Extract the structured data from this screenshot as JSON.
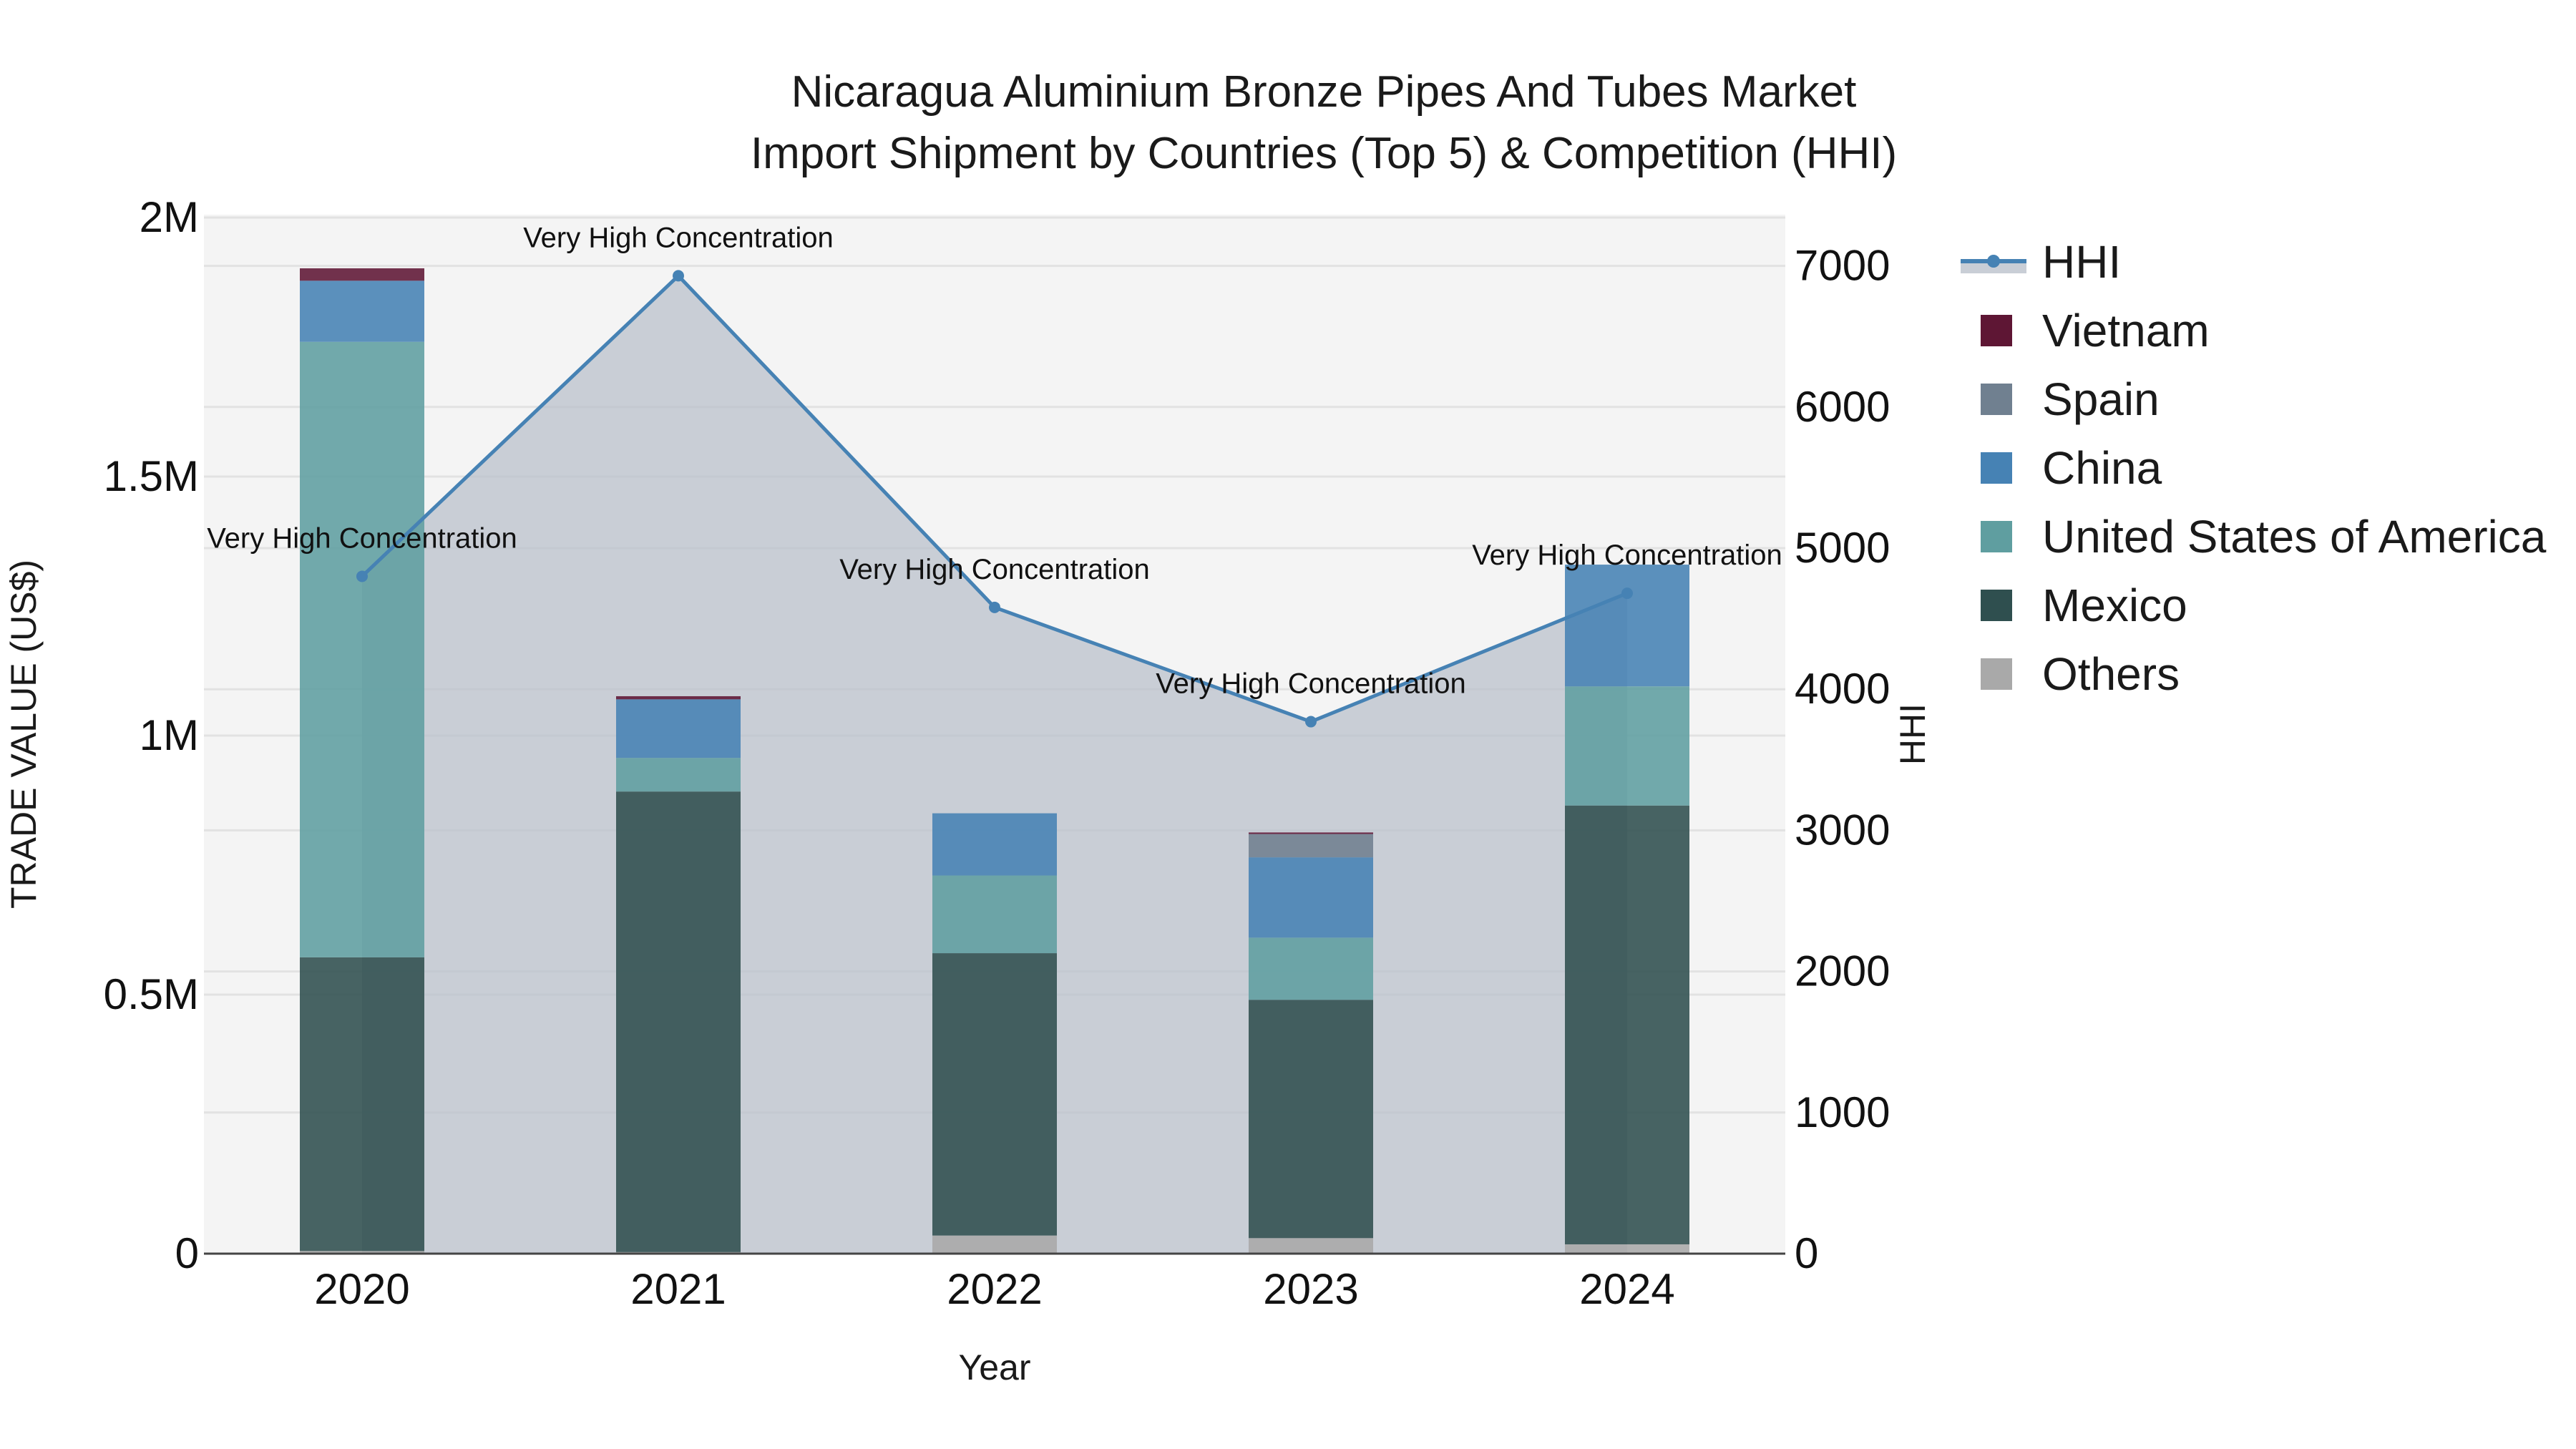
{
  "title": {
    "line1": "Nicaragua Aluminium Bronze Pipes And Tubes Market",
    "line2": "Import Shipment by Countries (Top 5) & Competition (HHI)"
  },
  "axes": {
    "x_title": "Year",
    "y_left_title": "TRADE VALUE (US$)",
    "y_right_title": "HHI",
    "y_left_ticks": [
      "0",
      "0.5M",
      "1M",
      "1.5M",
      "2M"
    ],
    "y_right_ticks": [
      "0",
      "1000",
      "2000",
      "3000",
      "4000",
      "5000",
      "6000",
      "7000"
    ],
    "x_ticks": [
      "2020",
      "2021",
      "2022",
      "2023",
      "2024"
    ]
  },
  "legend": [
    {
      "label": "HHI",
      "type": "line",
      "color": "#4682b4"
    },
    {
      "label": "Vietnam",
      "type": "bar",
      "color": "#5e1634"
    },
    {
      "label": "Spain",
      "type": "bar",
      "color": "#708090"
    },
    {
      "label": "China",
      "type": "bar",
      "color": "#4682b4"
    },
    {
      "label": "United States of America",
      "type": "bar",
      "color": "#5f9ea0"
    },
    {
      "label": "Mexico",
      "type": "bar",
      "color": "#2f4f4f"
    },
    {
      "label": "Others",
      "type": "bar",
      "color": "#a9a9a9"
    }
  ],
  "annotations": [
    "Very High Concentration",
    "Very High Concentration",
    "Very High Concentration",
    "Very High Concentration",
    "Very High Concentration"
  ],
  "chart_data": {
    "type": "bar",
    "stacked": true,
    "title": "Nicaragua Aluminium Bronze Pipes And Tubes Market Import Shipment by Countries (Top 5) & Competition (HHI)",
    "xlabel": "Year",
    "ylabel": "TRADE VALUE (US$)",
    "y2label": "HHI",
    "ylim": [
      0,
      2000000
    ],
    "y2lim": [
      0,
      7300
    ],
    "categories": [
      "2020",
      "2021",
      "2022",
      "2023",
      "2024"
    ],
    "series": [
      {
        "name": "Others",
        "color": "#a9a9a9",
        "values": [
          5000,
          3000,
          35000,
          30000,
          18000
        ]
      },
      {
        "name": "Mexico",
        "color": "#2f4f4f",
        "values": [
          567000,
          889000,
          545000,
          460000,
          847000
        ]
      },
      {
        "name": "United States of America",
        "color": "#5f9ea0",
        "values": [
          1188000,
          65000,
          150000,
          120000,
          230000
        ]
      },
      {
        "name": "China",
        "color": "#4682b4",
        "values": [
          118000,
          113000,
          120000,
          155000,
          235000
        ]
      },
      {
        "name": "Spain",
        "color": "#708090",
        "values": [
          0,
          0,
          0,
          45000,
          0
        ]
      },
      {
        "name": "Vietnam",
        "color": "#5e1634",
        "values": [
          24000,
          6000,
          0,
          3000,
          0
        ]
      }
    ],
    "line_series": {
      "name": "HHI",
      "axis": "right",
      "color": "#4682b4",
      "fill": "tozeroy",
      "values": [
        4800,
        6930,
        4580,
        3770,
        4680
      ],
      "labels": [
        "Very High Concentration",
        "Very High Concentration",
        "Very High Concentration",
        "Very High Concentration",
        "Very High Concentration"
      ]
    },
    "grid": true,
    "legend_position": "right"
  }
}
